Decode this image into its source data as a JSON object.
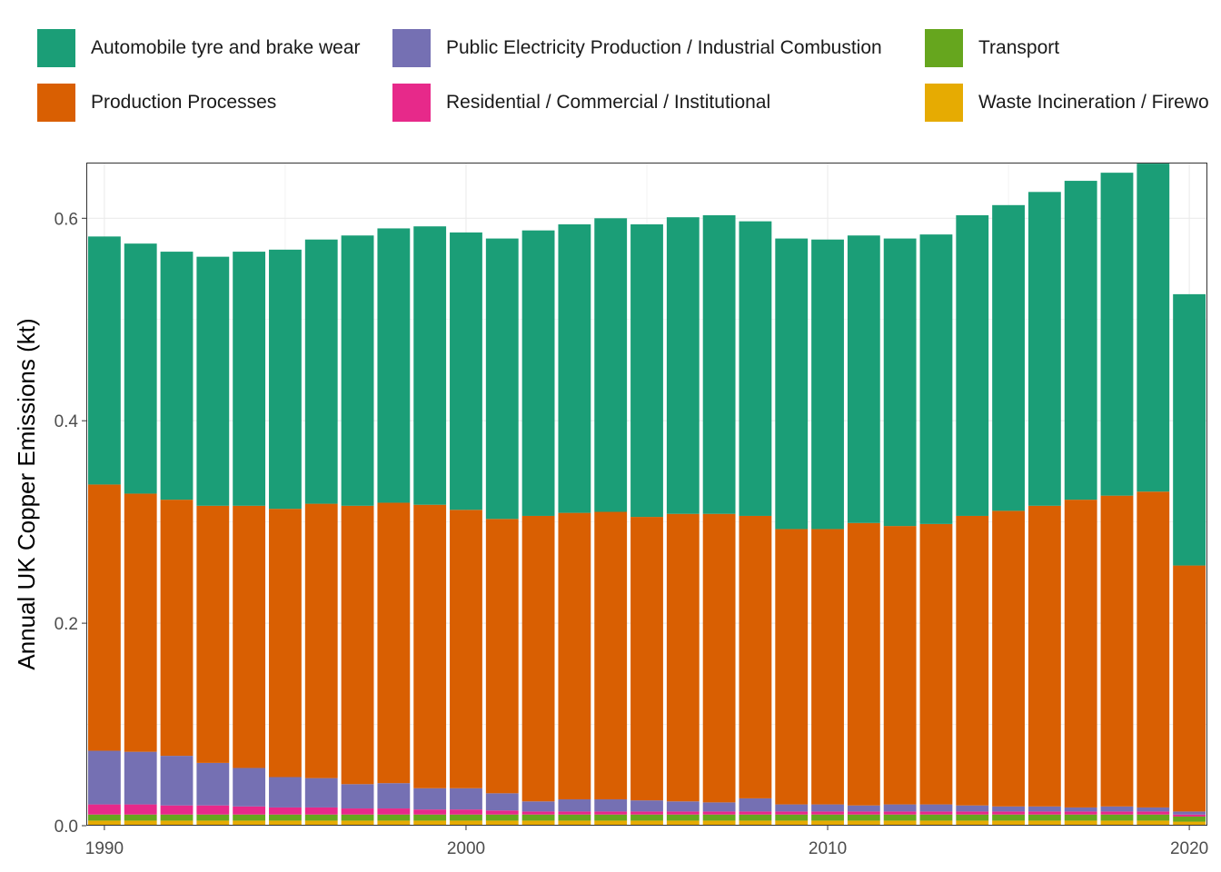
{
  "chart_data": {
    "type": "bar",
    "stacked": true,
    "xlabel": "",
    "ylabel": "Annual UK Copper Emissions (kt)",
    "ylim": [
      0,
      0.655
    ],
    "xlim": [
      1989.5,
      2020.5
    ],
    "x_ticks": [
      1990,
      2000,
      2010,
      2020
    ],
    "y_ticks": [
      0.0,
      0.2,
      0.4,
      0.6
    ],
    "x_tick_labels": [
      "1990",
      "2000",
      "2010",
      "2020"
    ],
    "y_tick_labels": [
      "0.0",
      "0.2",
      "0.4",
      "0.6"
    ],
    "grid": true,
    "legend_position": "top",
    "x": [
      1990,
      1991,
      1992,
      1993,
      1994,
      1995,
      1996,
      1997,
      1998,
      1999,
      2000,
      2001,
      2002,
      2003,
      2004,
      2005,
      2006,
      2007,
      2008,
      2009,
      2010,
      2011,
      2012,
      2013,
      2014,
      2015,
      2016,
      2017,
      2018,
      2019,
      2020
    ],
    "series": [
      {
        "name": "Waste Incineration / Firewo",
        "color": "#E6AB02",
        "values": [
          0.005,
          0.005,
          0.005,
          0.005,
          0.005,
          0.005,
          0.005,
          0.005,
          0.005,
          0.005,
          0.005,
          0.005,
          0.005,
          0.005,
          0.005,
          0.005,
          0.005,
          0.005,
          0.005,
          0.005,
          0.005,
          0.005,
          0.005,
          0.005,
          0.005,
          0.005,
          0.005,
          0.005,
          0.005,
          0.005,
          0.004
        ]
      },
      {
        "name": "Transport",
        "color": "#66A61E",
        "values": [
          0.006,
          0.006,
          0.006,
          0.006,
          0.006,
          0.006,
          0.006,
          0.006,
          0.006,
          0.006,
          0.006,
          0.006,
          0.006,
          0.006,
          0.006,
          0.006,
          0.006,
          0.006,
          0.006,
          0.006,
          0.006,
          0.006,
          0.006,
          0.006,
          0.006,
          0.006,
          0.006,
          0.006,
          0.006,
          0.006,
          0.005
        ]
      },
      {
        "name": "Residential / Commercial / Institutional",
        "color": "#E7298A",
        "values": [
          0.01,
          0.01,
          0.009,
          0.009,
          0.008,
          0.007,
          0.007,
          0.006,
          0.006,
          0.005,
          0.005,
          0.004,
          0.003,
          0.003,
          0.003,
          0.003,
          0.003,
          0.003,
          0.003,
          0.003,
          0.003,
          0.003,
          0.003,
          0.003,
          0.003,
          0.003,
          0.003,
          0.003,
          0.003,
          0.003,
          0.002
        ]
      },
      {
        "name": "Public Electricity Production / Industrial Combustion",
        "color": "#7570B3",
        "values": [
          0.053,
          0.052,
          0.049,
          0.042,
          0.038,
          0.03,
          0.029,
          0.024,
          0.025,
          0.021,
          0.021,
          0.017,
          0.01,
          0.012,
          0.012,
          0.011,
          0.01,
          0.009,
          0.013,
          0.007,
          0.007,
          0.006,
          0.007,
          0.007,
          0.006,
          0.005,
          0.005,
          0.004,
          0.005,
          0.004,
          0.003
        ]
      },
      {
        "name": "Production Processes",
        "color": "#D95F02",
        "values": [
          0.263,
          0.255,
          0.253,
          0.254,
          0.259,
          0.265,
          0.271,
          0.275,
          0.277,
          0.28,
          0.275,
          0.271,
          0.282,
          0.283,
          0.284,
          0.28,
          0.284,
          0.285,
          0.279,
          0.272,
          0.272,
          0.279,
          0.275,
          0.277,
          0.286,
          0.292,
          0.297,
          0.304,
          0.307,
          0.312,
          0.243
        ]
      },
      {
        "name": "Automobile tyre and brake wear",
        "color": "#1B9E77",
        "values": [
          0.245,
          0.247,
          0.245,
          0.246,
          0.251,
          0.256,
          0.261,
          0.267,
          0.271,
          0.275,
          0.274,
          0.277,
          0.282,
          0.285,
          0.29,
          0.289,
          0.293,
          0.295,
          0.291,
          0.287,
          0.286,
          0.284,
          0.284,
          0.286,
          0.297,
          0.302,
          0.31,
          0.315,
          0.319,
          0.324,
          0.268
        ]
      }
    ]
  },
  "legend": {
    "items": [
      {
        "label": "Automobile tyre and brake wear",
        "color": "#1B9E77"
      },
      {
        "label": "Public Electricity Production / Industrial Combustion",
        "color": "#7570B3"
      },
      {
        "label": "Transport",
        "color": "#66A61E"
      },
      {
        "label": "Production Processes",
        "color": "#D95F02"
      },
      {
        "label": "Residential / Commercial / Institutional",
        "color": "#E7298A"
      },
      {
        "label": "Waste Incineration / Firewo",
        "color": "#E6AB02"
      }
    ]
  }
}
